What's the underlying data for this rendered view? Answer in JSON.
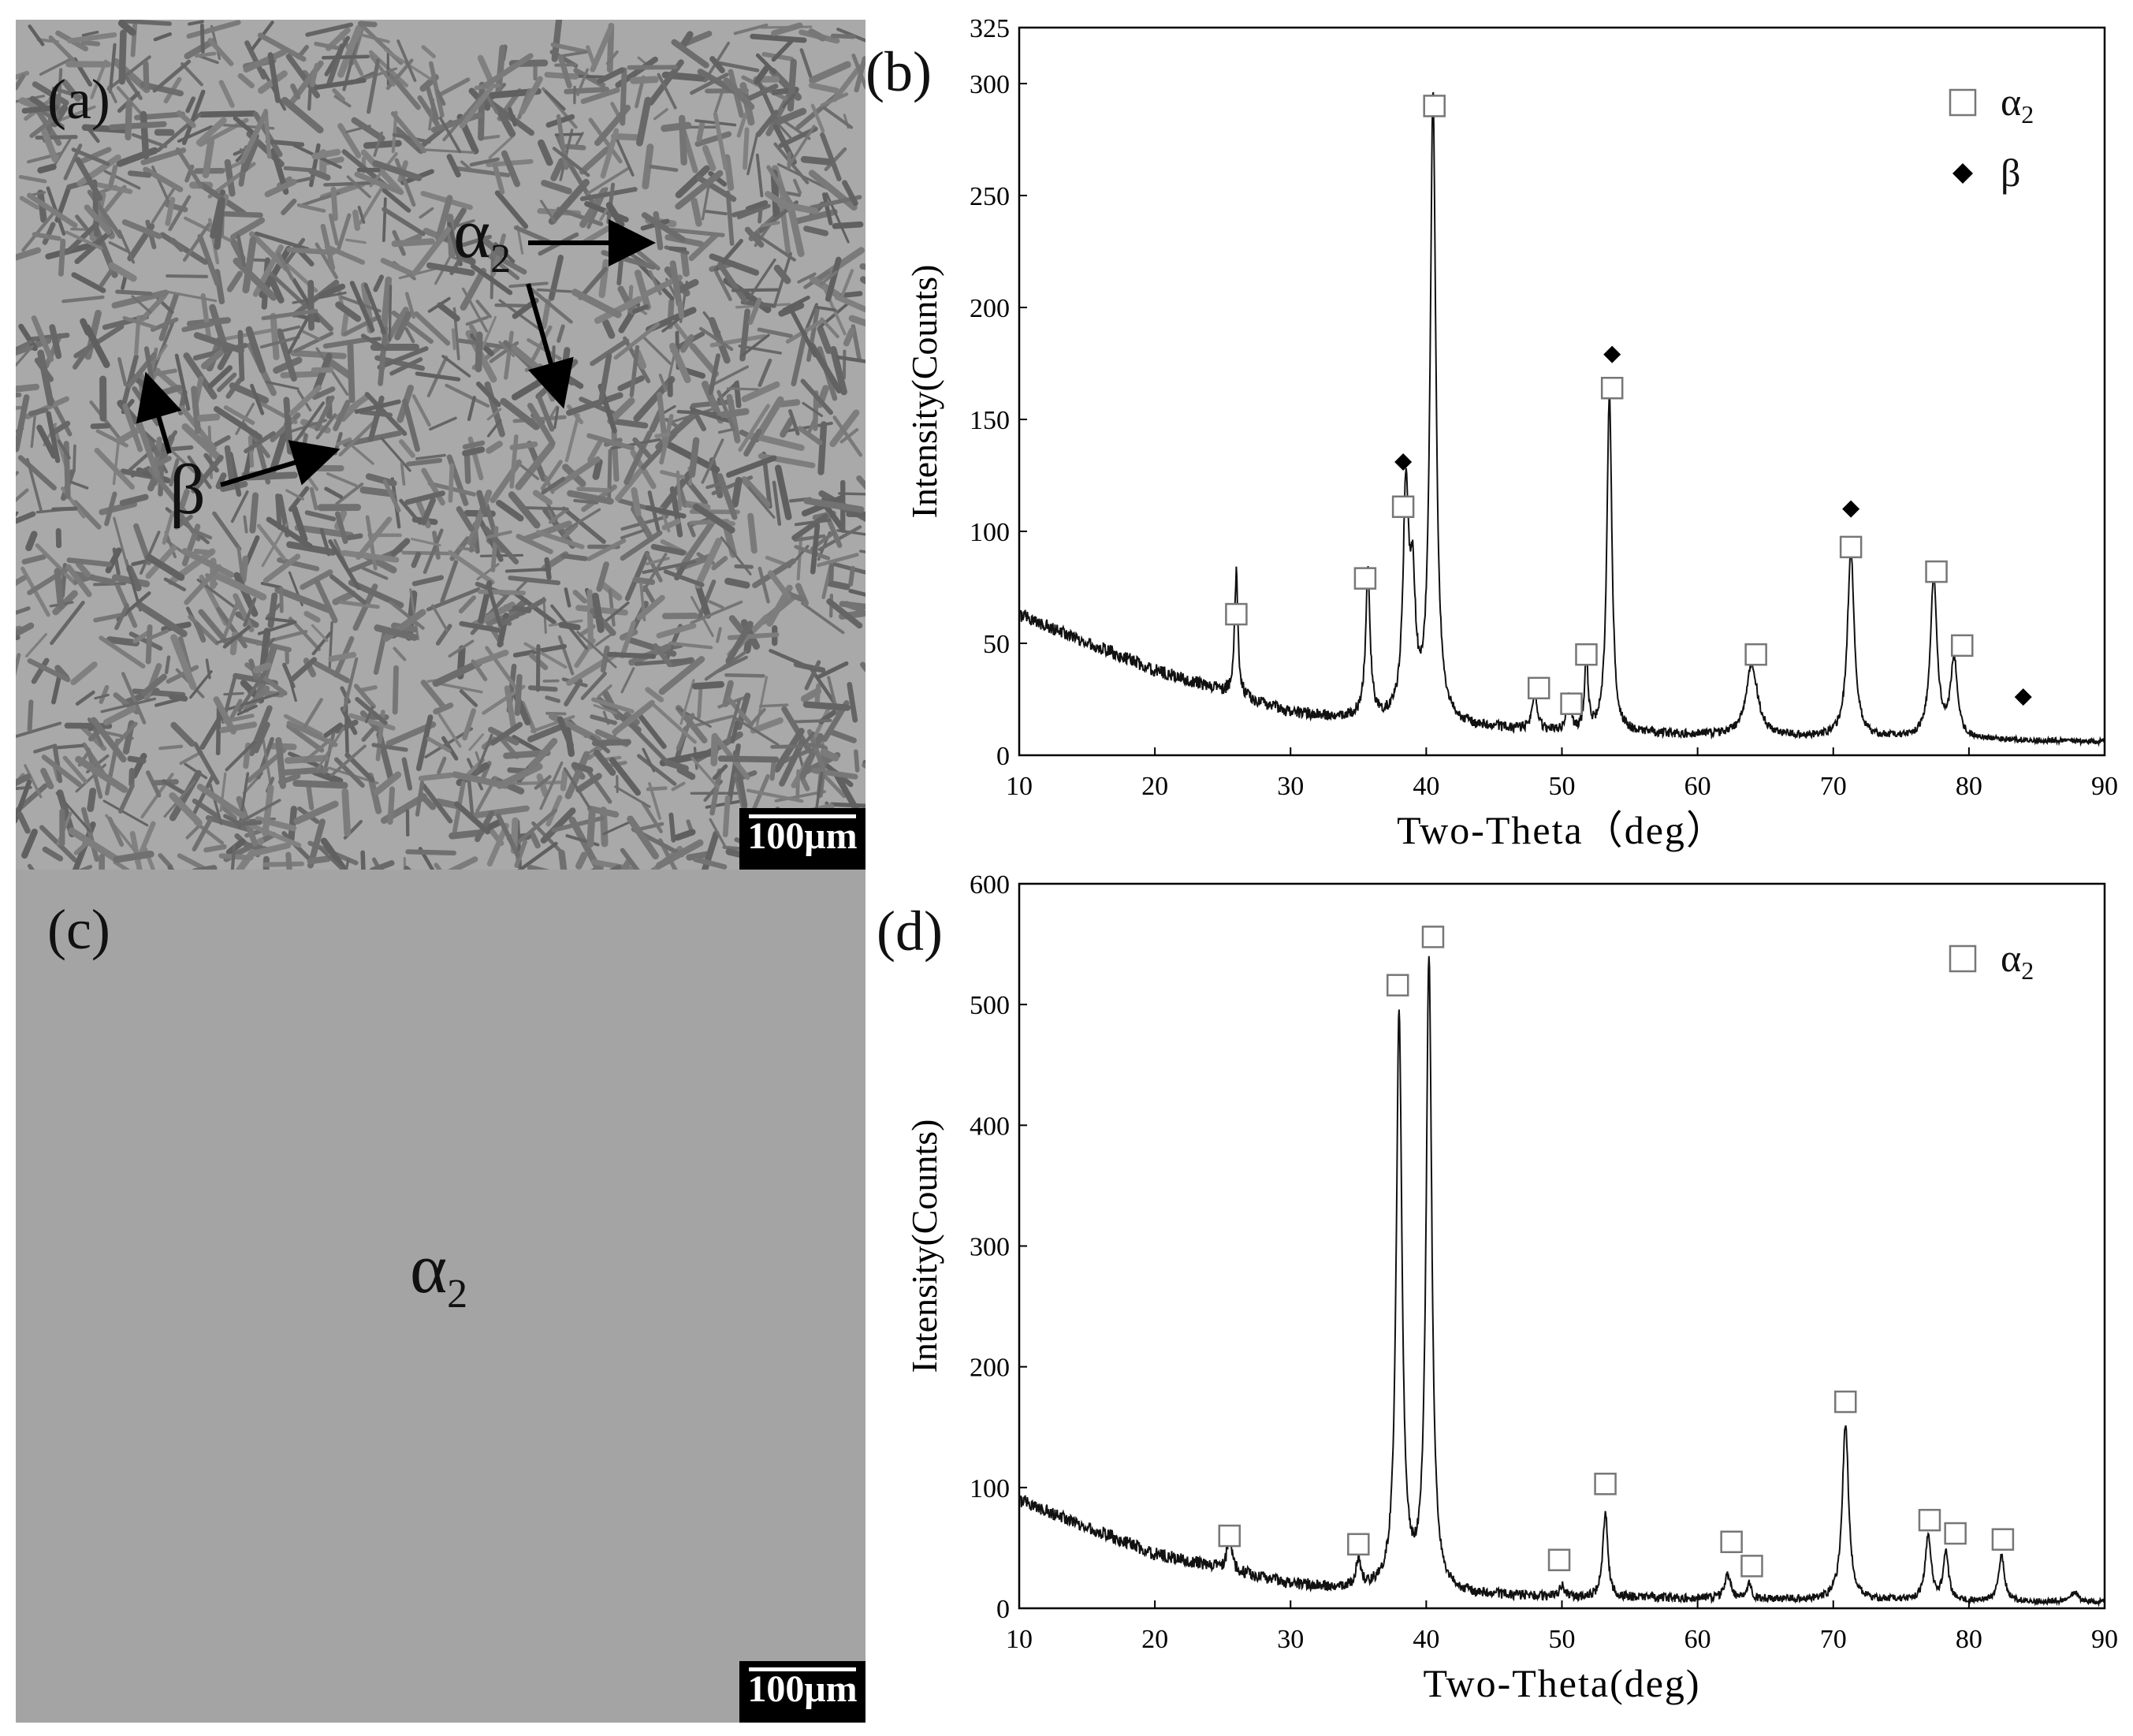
{
  "panels": {
    "a": {
      "label": "(a)",
      "scale_label": "100μm",
      "annotations": [
        {
          "text": "α",
          "sub": "2",
          "name": "alpha2-annotation"
        },
        {
          "text": "β",
          "sub": "",
          "name": "beta-annotation"
        }
      ]
    },
    "c": {
      "label": "(c)",
      "scale_label": "100μm",
      "phase_text": "α",
      "phase_sub": "2"
    }
  },
  "chart_data": [
    {
      "panel_label": "(b)",
      "type": "line",
      "xlabel": "Two-Theta（deg）",
      "ylabel": "Intensity(Counts)",
      "xlim": [
        10,
        90
      ],
      "ylim": [
        0,
        325
      ],
      "xticks": [
        10,
        20,
        30,
        40,
        50,
        60,
        70,
        80,
        90
      ],
      "yticks": [
        0,
        50,
        100,
        150,
        200,
        250,
        300,
        325
      ],
      "legend": [
        {
          "marker": "open-square",
          "label": "α",
          "sub": "2"
        },
        {
          "marker": "filled-diamond",
          "label": "β",
          "sub": ""
        }
      ],
      "legend_position": "top-right",
      "background": {
        "x10": 63,
        "x20": 38,
        "x30": 19,
        "x40": 14,
        "x50": 10,
        "x60": 9,
        "x70": 8,
        "x80": 7,
        "x90": 6
      },
      "peaks": [
        {
          "x": 26.0,
          "y": 55,
          "w": 0.15
        },
        {
          "x": 35.7,
          "y": 65,
          "w": 0.2
        },
        {
          "x": 38.5,
          "y": 98,
          "w": 0.25
        },
        {
          "x": 39.0,
          "y": 52,
          "w": 0.25
        },
        {
          "x": 40.5,
          "y": 280,
          "w": 0.25
        },
        {
          "x": 48.0,
          "y": 18,
          "w": 0.2
        },
        {
          "x": 50.5,
          "y": 15,
          "w": 0.2
        },
        {
          "x": 51.8,
          "y": 33,
          "w": 0.15
        },
        {
          "x": 53.5,
          "y": 152,
          "w": 0.22
        },
        {
          "x": 64.0,
          "y": 32,
          "w": 0.5
        },
        {
          "x": 71.3,
          "y": 84,
          "w": 0.3
        },
        {
          "x": 77.4,
          "y": 71,
          "w": 0.3
        },
        {
          "x": 78.9,
          "y": 35,
          "w": 0.3
        }
      ],
      "markers": [
        {
          "x": 26.0,
          "y": 63,
          "phase": "alpha2"
        },
        {
          "x": 35.5,
          "y": 79,
          "phase": "alpha2"
        },
        {
          "x": 38.3,
          "y": 111,
          "phase": "alpha2"
        },
        {
          "x": 38.3,
          "y": 131,
          "phase": "beta"
        },
        {
          "x": 40.6,
          "y": 290,
          "phase": "alpha2"
        },
        {
          "x": 48.3,
          "y": 30,
          "phase": "alpha2"
        },
        {
          "x": 50.7,
          "y": 23,
          "phase": "alpha2"
        },
        {
          "x": 51.8,
          "y": 45,
          "phase": "alpha2"
        },
        {
          "x": 53.7,
          "y": 164,
          "phase": "alpha2"
        },
        {
          "x": 53.7,
          "y": 179,
          "phase": "beta"
        },
        {
          "x": 64.3,
          "y": 45,
          "phase": "alpha2"
        },
        {
          "x": 71.3,
          "y": 93,
          "phase": "alpha2"
        },
        {
          "x": 71.3,
          "y": 110,
          "phase": "beta"
        },
        {
          "x": 77.6,
          "y": 82,
          "phase": "alpha2"
        },
        {
          "x": 79.5,
          "y": 49,
          "phase": "alpha2"
        },
        {
          "x": 84.0,
          "y": 26,
          "phase": "beta"
        }
      ]
    },
    {
      "panel_label": "(d)",
      "type": "line",
      "xlabel": "Two-Theta(deg)",
      "ylabel": "Intensity(Counts)",
      "xlim": [
        10,
        90
      ],
      "ylim": [
        0,
        600
      ],
      "xticks": [
        10,
        20,
        30,
        40,
        50,
        60,
        70,
        80,
        90
      ],
      "yticks": [
        0,
        100,
        200,
        300,
        400,
        500,
        600
      ],
      "legend": [
        {
          "marker": "open-square",
          "label": "α",
          "sub": "2"
        }
      ],
      "legend_position": "top-right",
      "background": {
        "x10": 90,
        "x20": 45,
        "x30": 20,
        "x40": 12,
        "x50": 9,
        "x60": 8,
        "x70": 7,
        "x80": 6,
        "x90": 5
      },
      "peaks": [
        {
          "x": 25.5,
          "y": 30,
          "w": 0.2
        },
        {
          "x": 35.0,
          "y": 22,
          "w": 0.2
        },
        {
          "x": 38.0,
          "y": 478,
          "w": 0.25
        },
        {
          "x": 40.2,
          "y": 525,
          "w": 0.25
        },
        {
          "x": 50.0,
          "y": 10,
          "w": 0.2
        },
        {
          "x": 53.2,
          "y": 70,
          "w": 0.22
        },
        {
          "x": 62.2,
          "y": 20,
          "w": 0.25
        },
        {
          "x": 63.8,
          "y": 12,
          "w": 0.2
        },
        {
          "x": 70.9,
          "y": 145,
          "w": 0.28
        },
        {
          "x": 77.0,
          "y": 55,
          "w": 0.25
        },
        {
          "x": 78.3,
          "y": 40,
          "w": 0.22
        },
        {
          "x": 82.4,
          "y": 38,
          "w": 0.25
        },
        {
          "x": 87.8,
          "y": 8,
          "w": 0.3
        }
      ],
      "markers": [
        {
          "x": 25.5,
          "y": 60,
          "phase": "alpha2"
        },
        {
          "x": 35.0,
          "y": 53,
          "phase": "alpha2"
        },
        {
          "x": 37.9,
          "y": 516,
          "phase": "alpha2"
        },
        {
          "x": 40.5,
          "y": 556,
          "phase": "alpha2"
        },
        {
          "x": 49.8,
          "y": 40,
          "phase": "alpha2"
        },
        {
          "x": 53.2,
          "y": 103,
          "phase": "alpha2"
        },
        {
          "x": 62.5,
          "y": 55,
          "phase": "alpha2"
        },
        {
          "x": 64.0,
          "y": 35,
          "phase": "alpha2"
        },
        {
          "x": 70.9,
          "y": 171,
          "phase": "alpha2"
        },
        {
          "x": 77.1,
          "y": 73,
          "phase": "alpha2"
        },
        {
          "x": 79.0,
          "y": 62,
          "phase": "alpha2"
        },
        {
          "x": 82.5,
          "y": 57,
          "phase": "alpha2"
        }
      ]
    }
  ]
}
